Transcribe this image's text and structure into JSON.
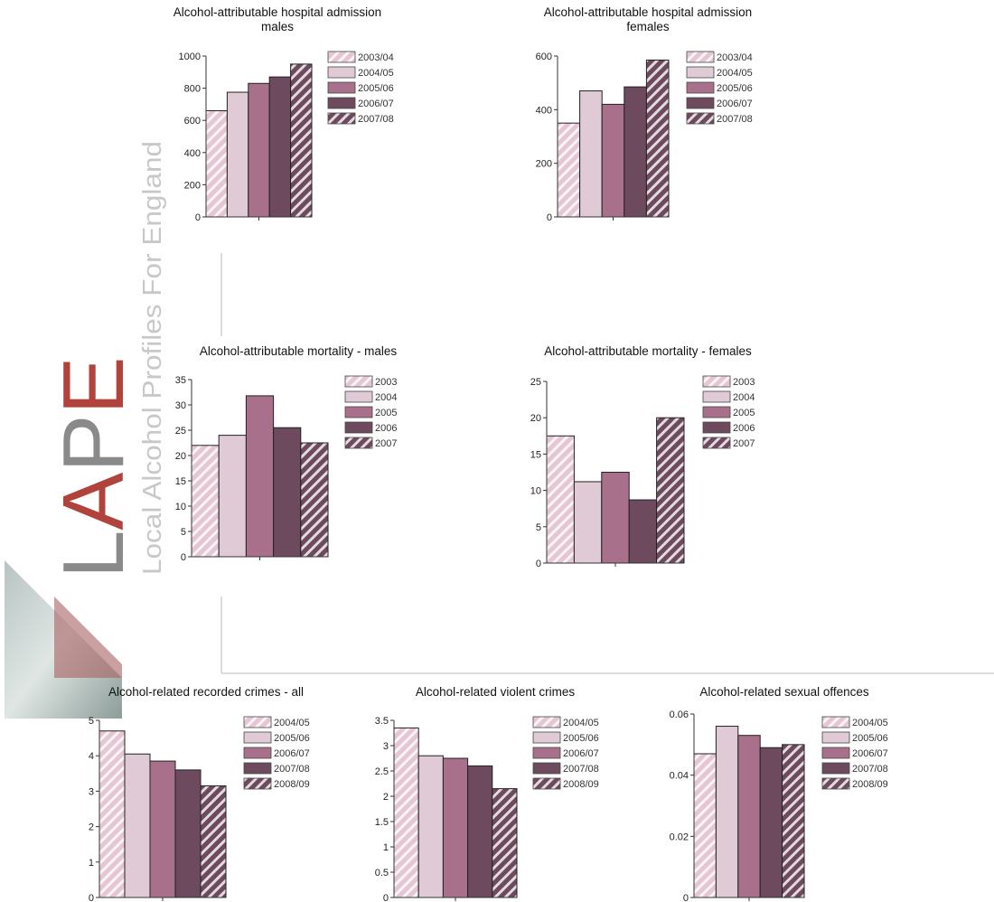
{
  "logo": {
    "letters": [
      "L",
      "A",
      "P",
      "E"
    ],
    "tagline": "Local Alcohol Profiles For England"
  },
  "chart_data": [
    {
      "type": "bar",
      "title": "Alcohol-attributable hospital admission",
      "subtitle": "males",
      "categories": [
        "2003/04",
        "2004/05",
        "2005/06",
        "2006/07",
        "2007/08"
      ],
      "values": [
        660,
        775,
        830,
        870,
        950
      ],
      "colors": [
        "#e6c6d4",
        "#e0cad6",
        "#a8708a",
        "#6e4a5e",
        "#6e4a5e"
      ],
      "hatched": [
        true,
        false,
        false,
        false,
        true
      ],
      "ylim": [
        0,
        1000
      ],
      "yticks": [
        0,
        200,
        400,
        600,
        800,
        1000
      ],
      "legend": "right"
    },
    {
      "type": "bar",
      "title": "Alcohol-attributable hospital admission",
      "subtitle": "females",
      "categories": [
        "2003/04",
        "2004/05",
        "2005/06",
        "2006/07",
        "2007/08"
      ],
      "values": [
        350,
        470,
        420,
        485,
        585
      ],
      "colors": [
        "#e6c6d4",
        "#e0cad6",
        "#a8708a",
        "#6e4a5e",
        "#6e4a5e"
      ],
      "hatched": [
        true,
        false,
        false,
        false,
        true
      ],
      "ylim": [
        0,
        600
      ],
      "yticks": [
        0,
        200,
        400,
        600
      ],
      "legend": "right"
    },
    {
      "type": "bar",
      "title": "Alcohol-attributable mortality - males",
      "categories": [
        "2003",
        "2004",
        "2005",
        "2006",
        "2007"
      ],
      "values": [
        22,
        24,
        31.8,
        25.5,
        22.5
      ],
      "colors": [
        "#e6c6d4",
        "#e0cad6",
        "#a8708a",
        "#6e4a5e",
        "#6e4a5e"
      ],
      "hatched": [
        true,
        false,
        false,
        false,
        true
      ],
      "ylim": [
        0,
        35
      ],
      "yticks": [
        0,
        5,
        10,
        15,
        20,
        25,
        30,
        35
      ],
      "legend": "right"
    },
    {
      "type": "bar",
      "title": "Alcohol-attributable mortality - females",
      "categories": [
        "2003",
        "2004",
        "2005",
        "2006",
        "2007"
      ],
      "values": [
        17.5,
        11.2,
        12.5,
        8.7,
        20
      ],
      "colors": [
        "#e6c6d4",
        "#e0cad6",
        "#a8708a",
        "#6e4a5e",
        "#6e4a5e"
      ],
      "hatched": [
        true,
        false,
        false,
        false,
        true
      ],
      "ylim": [
        0,
        25
      ],
      "yticks": [
        0,
        5,
        10,
        15,
        20,
        25
      ],
      "legend": "right"
    },
    {
      "type": "bar",
      "title": "Alcohol-related recorded crimes - all",
      "categories": [
        "2004/05",
        "2005/06",
        "2006/07",
        "2007/08",
        "2008/09"
      ],
      "values": [
        4.7,
        4.05,
        3.85,
        3.6,
        3.15
      ],
      "colors": [
        "#e6c6d4",
        "#e0cad6",
        "#a8708a",
        "#6e4a5e",
        "#6e4a5e"
      ],
      "hatched": [
        true,
        false,
        false,
        false,
        true
      ],
      "ylim": [
        0,
        5
      ],
      "yticks": [
        0,
        1,
        2,
        3,
        4,
        5
      ],
      "legend": "right"
    },
    {
      "type": "bar",
      "title": "Alcohol-related violent crimes",
      "categories": [
        "2004/05",
        "2005/06",
        "2006/07",
        "2007/08",
        "2008/09"
      ],
      "values": [
        3.35,
        2.8,
        2.75,
        2.6,
        2.15
      ],
      "colors": [
        "#e6c6d4",
        "#e0cad6",
        "#a8708a",
        "#6e4a5e",
        "#6e4a5e"
      ],
      "hatched": [
        true,
        false,
        false,
        false,
        true
      ],
      "ylim": [
        0,
        3.5
      ],
      "yticks": [
        0,
        0.5,
        1,
        1.5,
        2,
        2.5,
        3,
        3.5
      ],
      "legend": "right"
    },
    {
      "type": "bar",
      "title": "Alcohol-related sexual offences",
      "categories": [
        "2004/05",
        "2005/06",
        "2006/07",
        "2007/08",
        "2008/09"
      ],
      "values": [
        0.047,
        0.056,
        0.053,
        0.049,
        0.05
      ],
      "colors": [
        "#e6c6d4",
        "#e0cad6",
        "#a8708a",
        "#6e4a5e",
        "#6e4a5e"
      ],
      "hatched": [
        true,
        false,
        false,
        false,
        true
      ],
      "ylim": [
        0,
        0.06
      ],
      "yticks": [
        0,
        0.02,
        0.04,
        0.06
      ],
      "legend": "right"
    }
  ]
}
